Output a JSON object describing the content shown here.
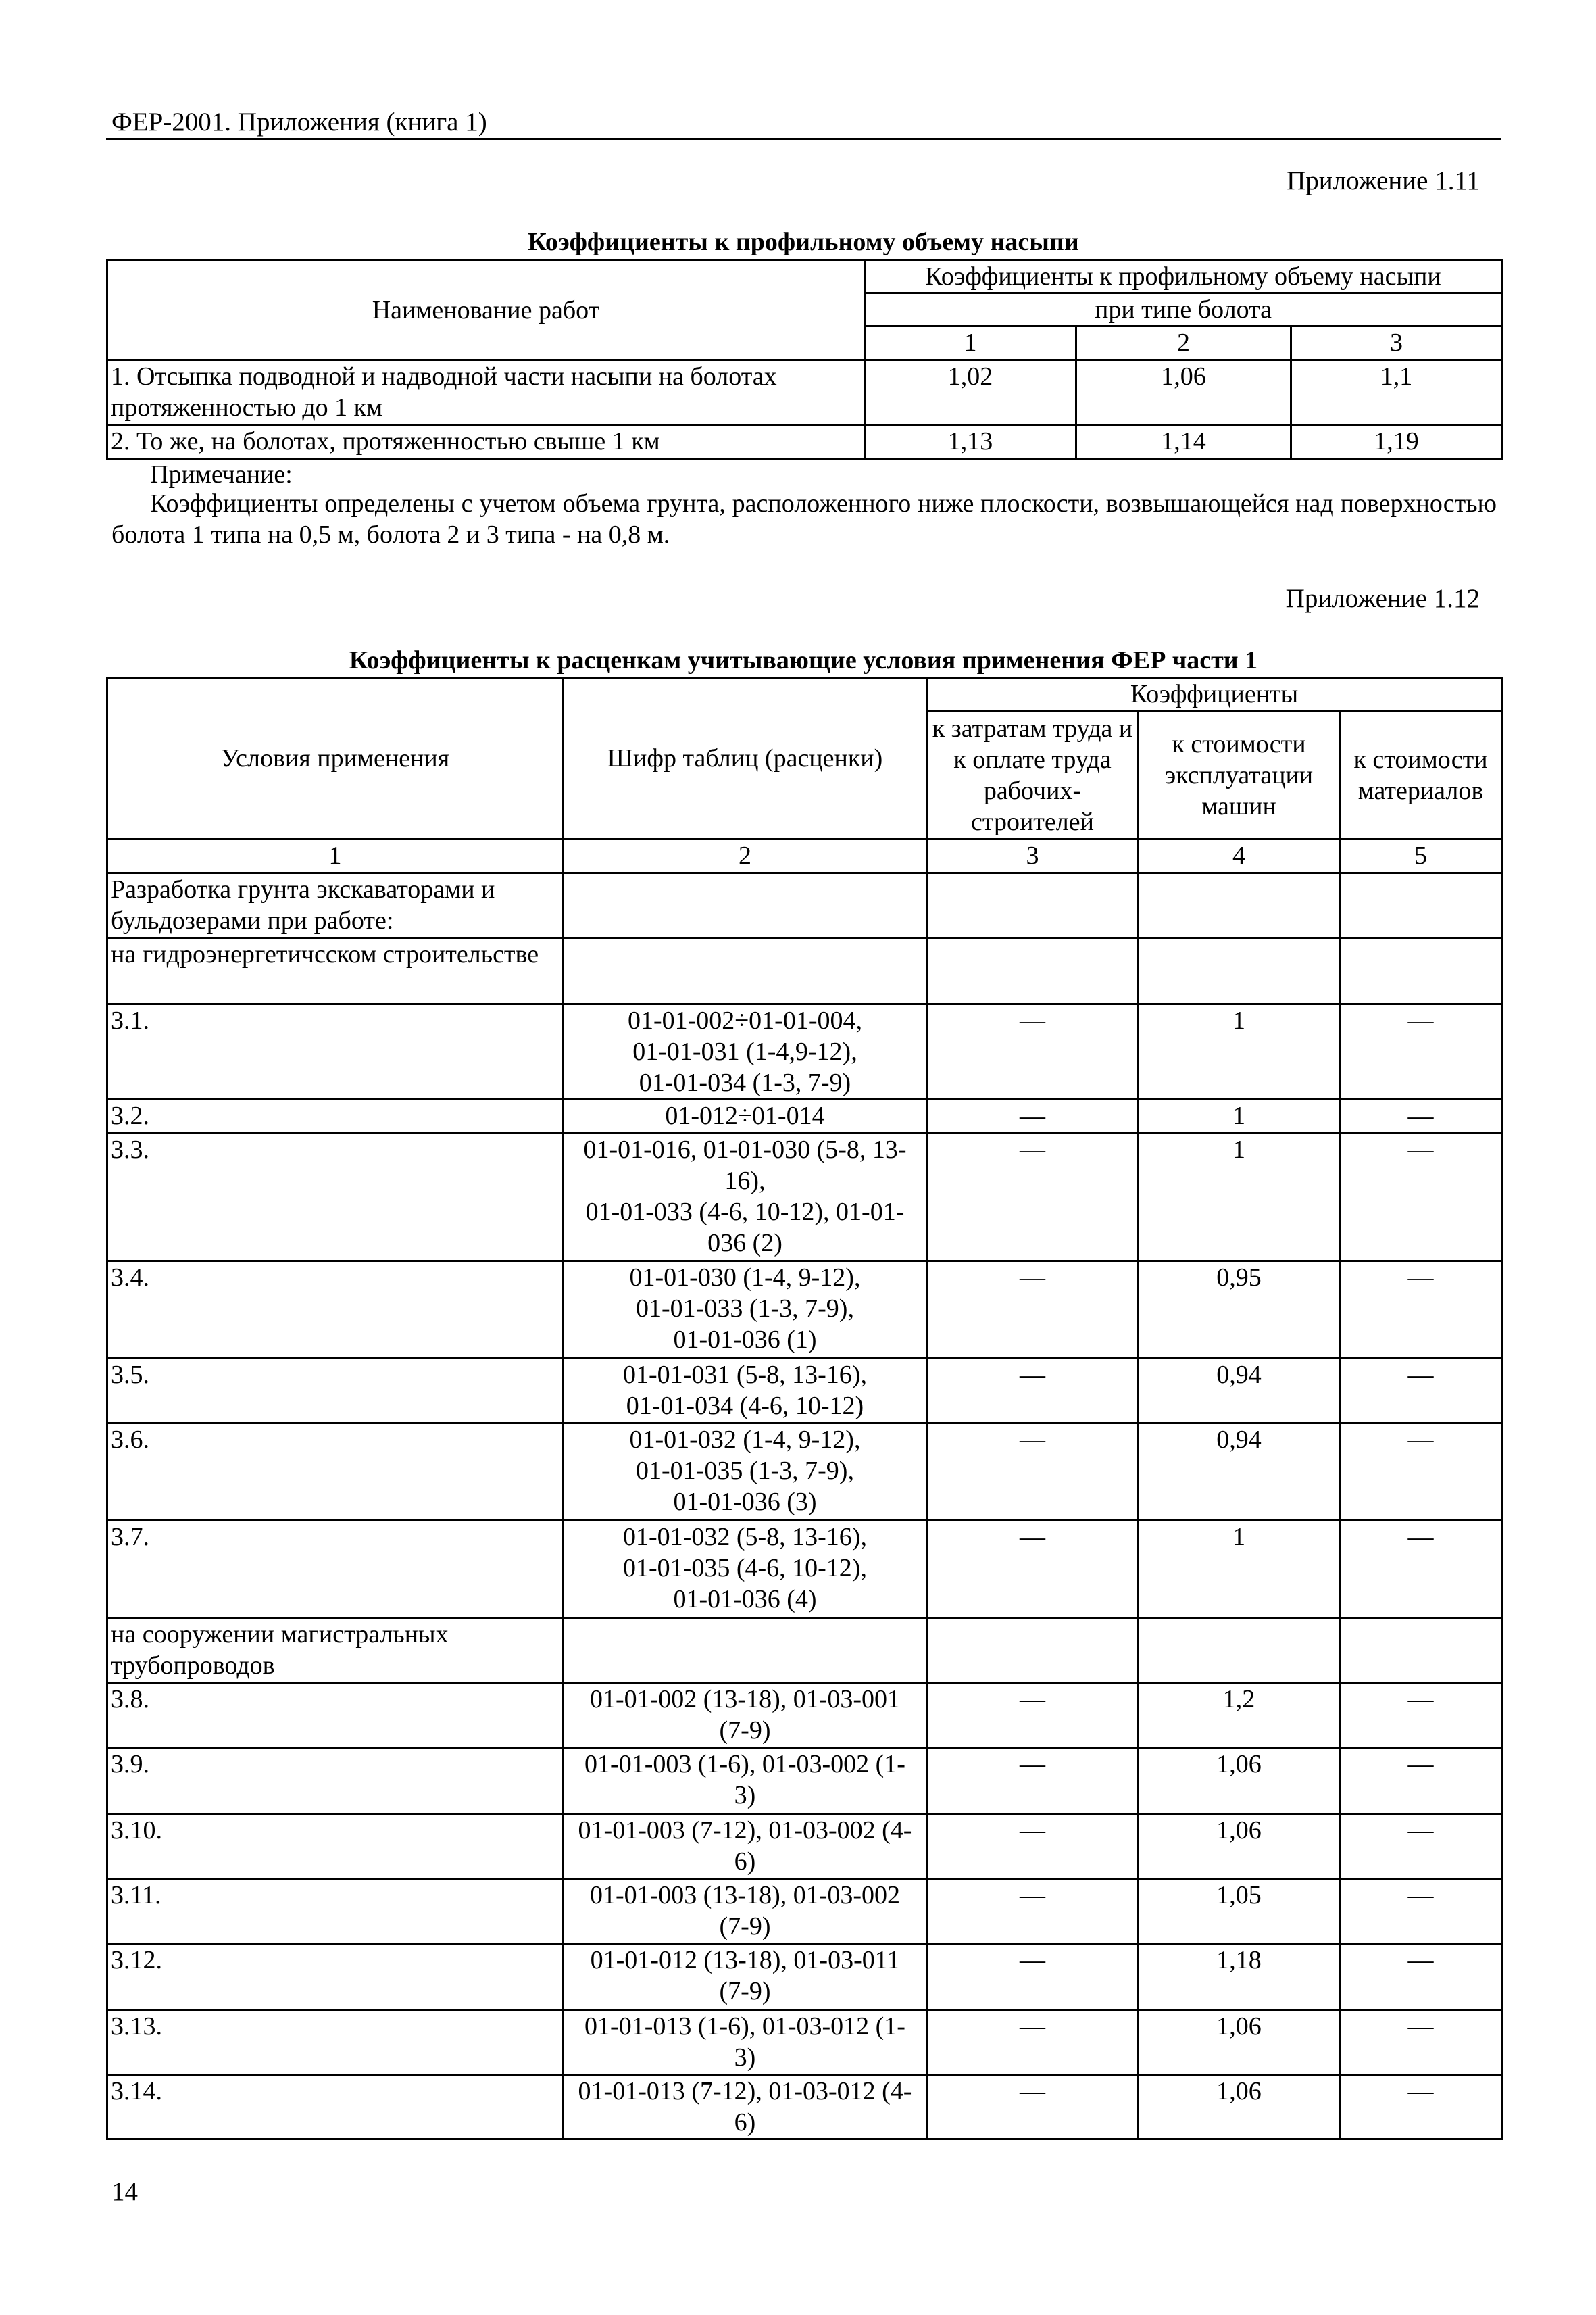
{
  "running_head": "ФЕР-2001. Приложения (книга 1)",
  "page_number": "14",
  "appendix_1_11": {
    "label": "Приложение 1.11",
    "title": "Коэффициенты к профильному объему насыпи",
    "header": {
      "col_name": "Наименование работ",
      "group": "Коэффициенты к профильному объему насыпи",
      "subgroup": "при типе болота",
      "nums": [
        "1",
        "2",
        "3"
      ]
    },
    "rows": [
      {
        "name": "1. Отсыпка подводной и надводной части насыпи на болотах протяженностью до 1 км",
        "values": [
          "1,02",
          "1,06",
          "1,1"
        ]
      },
      {
        "name": "2. То же, на болотах, протяженностью свыше 1 км",
        "values": [
          "1,13",
          "1,14",
          "1,19"
        ]
      }
    ],
    "note_label": "Примечание:",
    "note_text": "Коэффициенты определены с учетом объема грунта, расположенного ниже плоскости, возвышающейся над поверхностью болота 1 типа на 0,5 м, болота 2 и 3 типа - на 0,8 м."
  },
  "appendix_1_12": {
    "label": "Приложение 1.12",
    "title": "Коэффициенты к расценкам учитывающие условия применения ФЕР части 1",
    "header": {
      "col1": "Условия применения",
      "col2": "Шифр таблиц (расценки)",
      "group": "Коэффициенты",
      "col3": "к затратам труда и к оплате труда рабочих-строителей",
      "col4": "к стоимости эксплуатации машин",
      "col5": "к стоимости материалов",
      "nums": [
        "1",
        "2",
        "3",
        "4",
        "5"
      ]
    },
    "rows": [
      {
        "cond": "Разработка грунта экскаваторами и бульдозерами при работе:",
        "code": "",
        "c3": "",
        "c4": "",
        "c5": ""
      },
      {
        "cond": "на гидроэнергетичсском строительстве",
        "code": "",
        "c3": "",
        "c4": "",
        "c5": ""
      },
      {
        "cond": "3.1.",
        "code": "01-01-002÷01-01-004,\n01-01-031 (1-4,9-12),\n01-01-034 (1-3, 7-9)",
        "c3": "—",
        "c4": "1",
        "c5": "—"
      },
      {
        "cond": "3.2.",
        "code": "01-012÷01-014",
        "c3": "—",
        "c4": "1",
        "c5": "—"
      },
      {
        "cond": "3.3.",
        "code": "01-01-016, 01-01-030 (5-8, 13-\n16),\n01-01-033 (4-6, 10-12), 01-01-\n036 (2)",
        "c3": "—",
        "c4": "1",
        "c5": "—"
      },
      {
        "cond": "3.4.",
        "code": "01-01-030 (1-4, 9-12),\n01-01-033 (1-3, 7-9),\n01-01-036 (1)",
        "c3": "—",
        "c4": "0,95",
        "c5": "—"
      },
      {
        "cond": "3.5.",
        "code": "01-01-031 (5-8, 13-16),\n01-01-034 (4-6, 10-12)",
        "c3": "—",
        "c4": "0,94",
        "c5": "—"
      },
      {
        "cond": "3.6.",
        "code": "01-01-032 (1-4, 9-12),\n01-01-035 (1-3, 7-9),\n01-01-036 (3)",
        "c3": "—",
        "c4": "0,94",
        "c5": "—"
      },
      {
        "cond": "3.7.",
        "code": "01-01-032 (5-8, 13-16),\n01-01-035 (4-6, 10-12),\n01-01-036 (4)",
        "c3": "—",
        "c4": "1",
        "c5": "—"
      },
      {
        "cond": "на сооружении магистральных трубопроводов",
        "code": "",
        "c3": "",
        "c4": "",
        "c5": ""
      },
      {
        "cond": "3.8.",
        "code": "01-01-002 (13-18), 01-03-001\n(7-9)",
        "c3": "—",
        "c4": "1,2",
        "c5": "—"
      },
      {
        "cond": "3.9.",
        "code": "01-01-003 (1-6), 01-03-002 (1-\n3)",
        "c3": "—",
        "c4": "1,06",
        "c5": "—"
      },
      {
        "cond": "3.10.",
        "code": "01-01-003 (7-12), 01-03-002 (4-\n6)",
        "c3": "—",
        "c4": "1,06",
        "c5": "—"
      },
      {
        "cond": "3.11.",
        "code": "01-01-003 (13-18), 01-03-002\n(7-9)",
        "c3": "—",
        "c4": "1,05",
        "c5": "—"
      },
      {
        "cond": "3.12.",
        "code": "01-01-012 (13-18), 01-03-011\n(7-9)",
        "c3": "—",
        "c4": "1,18",
        "c5": "—"
      },
      {
        "cond": "3.13.",
        "code": "01-01-013 (1-6), 01-03-012 (1-\n3)",
        "c3": "—",
        "c4": "1,06",
        "c5": "—"
      },
      {
        "cond": "3.14.",
        "code": "01-01-013 (7-12), 01-03-012 (4-\n6)",
        "c3": "—",
        "c4": "1,06",
        "c5": "—"
      }
    ]
  }
}
